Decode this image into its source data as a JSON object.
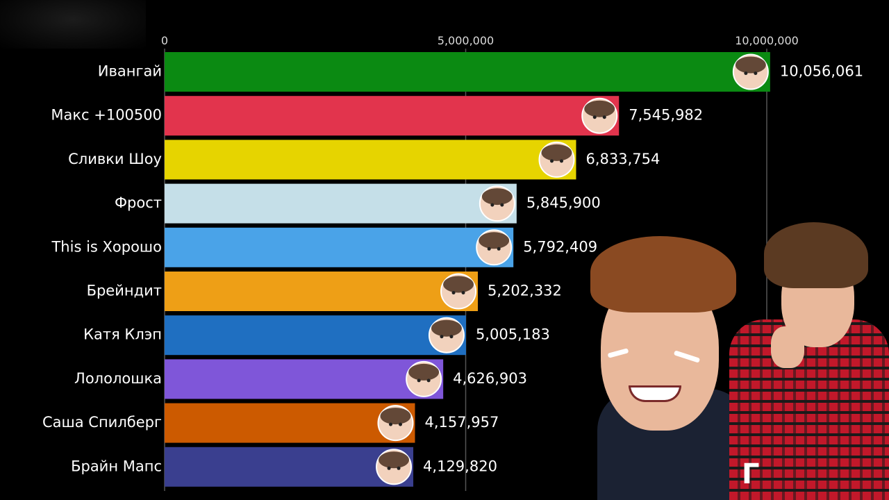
{
  "chart_data": {
    "type": "bar",
    "orientation": "horizontal",
    "categories": [
      "Ивангай",
      "Макс +100500",
      "Сливки Шоу",
      "Фрост",
      "This is Хорошо",
      "Брейндит",
      "Катя Клэп",
      "Лололошка",
      "Саша Спилберг",
      "Брайн Мапс"
    ],
    "values": [
      10056061,
      7545982,
      6833754,
      5845900,
      5792409,
      5202332,
      5005183,
      4626903,
      4157957,
      4129820
    ],
    "value_labels": [
      "10,056,061",
      "7,545,982",
      "6,833,754",
      "5,845,900",
      "5,792,409",
      "5,202,332",
      "5,005,183",
      "4,626,903",
      "4,157,957",
      "4,129,820"
    ],
    "colors": [
      "#0b8a12",
      "#e2344d",
      "#e6d400",
      "#c5dfe8",
      "#4aa3e8",
      "#ee9f16",
      "#1f6fc1",
      "#7f56d9",
      "#cc5a00",
      "#3a3f8f"
    ],
    "xlim": [
      0,
      10000000
    ],
    "xticks": [
      0,
      5000000,
      10000000
    ],
    "xtick_labels": [
      "0",
      "5,000,000",
      "10,000,000"
    ],
    "grid": true,
    "axis_position": "top",
    "title": "",
    "xlabel": "",
    "ylabel": "",
    "avatar_icons": [
      "anime-boy-avatar-icon",
      "bearded-man-avatar-icon",
      "cat-avatar-icon",
      "man-in-cap-avatar-icon",
      "smiling-man-avatar-icon",
      "group-avatar-icon",
      "red-haired-girl-avatar-icon",
      "cartoon-character-avatar-icon",
      "girl-avatar-icon",
      "young-man-avatar-icon"
    ]
  },
  "overlay": {
    "corner_text": "Г"
  }
}
